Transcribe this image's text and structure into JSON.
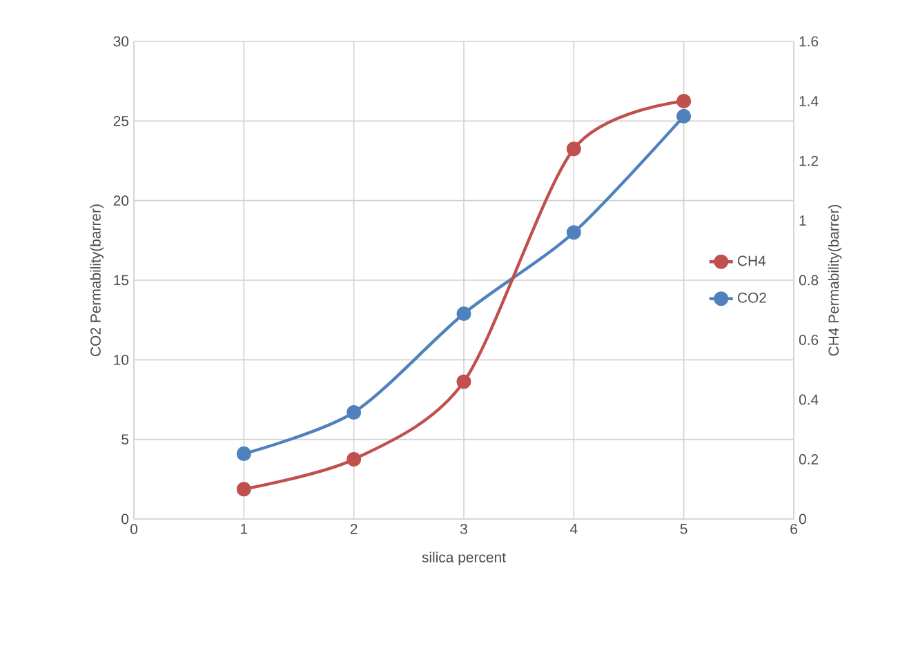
{
  "chart_data": {
    "type": "line",
    "xlabel": "silica percent",
    "ylabel": "CO2 Permability(barrer)",
    "y2label": "CH4 Permability(barrer)",
    "x": [
      1,
      2,
      3,
      4,
      5
    ],
    "series": [
      {
        "name": "CH4",
        "color": "#c0504d",
        "axis": "y2",
        "values": [
          0.1,
          0.2,
          0.46,
          1.24,
          1.4
        ]
      },
      {
        "name": "CO2",
        "color": "#4f81bd",
        "values": [
          4.1,
          6.7,
          12.9,
          18.0,
          25.3
        ]
      }
    ],
    "xlim": [
      0,
      6
    ],
    "xticks": [
      0,
      1,
      2,
      3,
      4,
      5,
      6
    ],
    "ylim": [
      0,
      30
    ],
    "yticks": [
      0,
      5,
      10,
      15,
      20,
      25,
      30
    ],
    "y2lim": [
      0,
      1.6
    ],
    "y2ticks": [
      0,
      0.2,
      0.4,
      0.6,
      0.8,
      1,
      1.2,
      1.4,
      1.6
    ],
    "grid": true,
    "legend": "right",
    "marker": "circle",
    "line_style": "solid"
  }
}
